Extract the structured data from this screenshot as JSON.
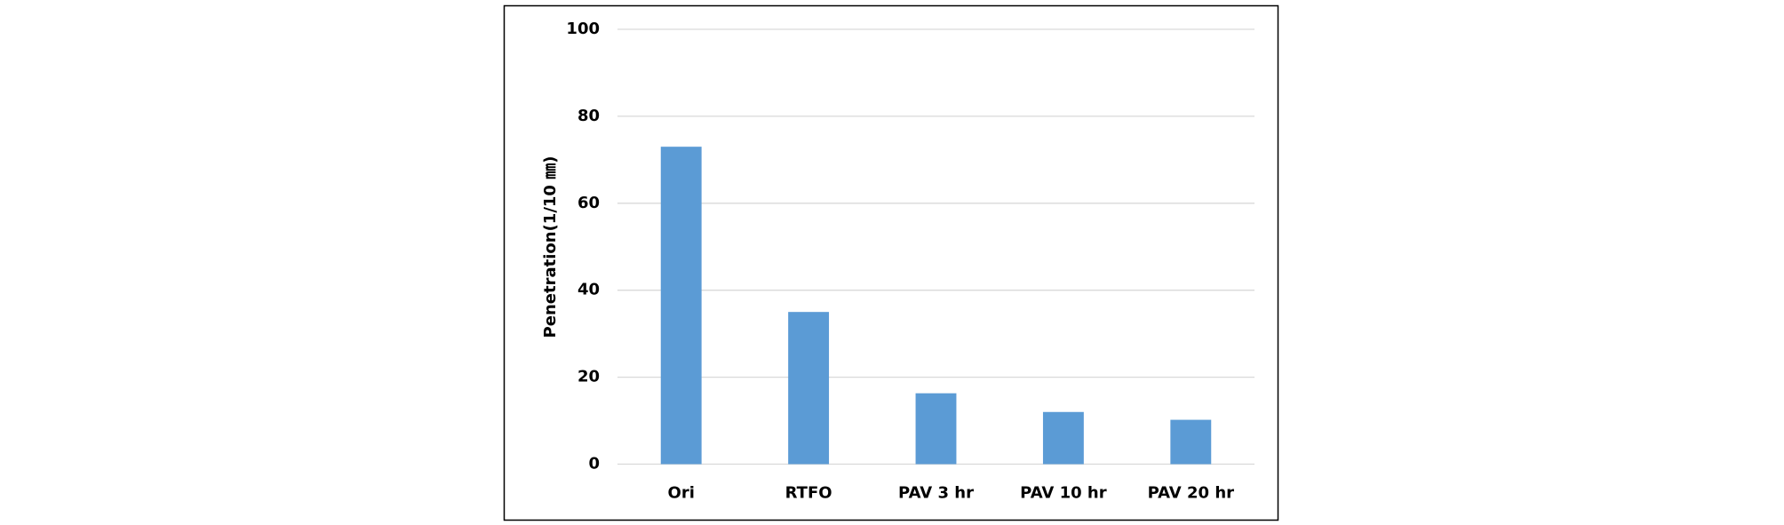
{
  "chart_data": {
    "type": "bar",
    "y_label": "Penetration(1/10 ㎜)",
    "categories": [
      "Ori",
      "RTFO",
      "PAV 3 hr",
      "PAV 10 hr",
      "PAV 20 hr"
    ],
    "values": [
      73,
      35,
      16.3,
      12,
      10.2
    ],
    "color": "#5b9bd5",
    "ylim": [
      0,
      100
    ],
    "yticks": [
      0,
      20,
      40,
      60,
      80,
      100
    ],
    "grid": true
  }
}
